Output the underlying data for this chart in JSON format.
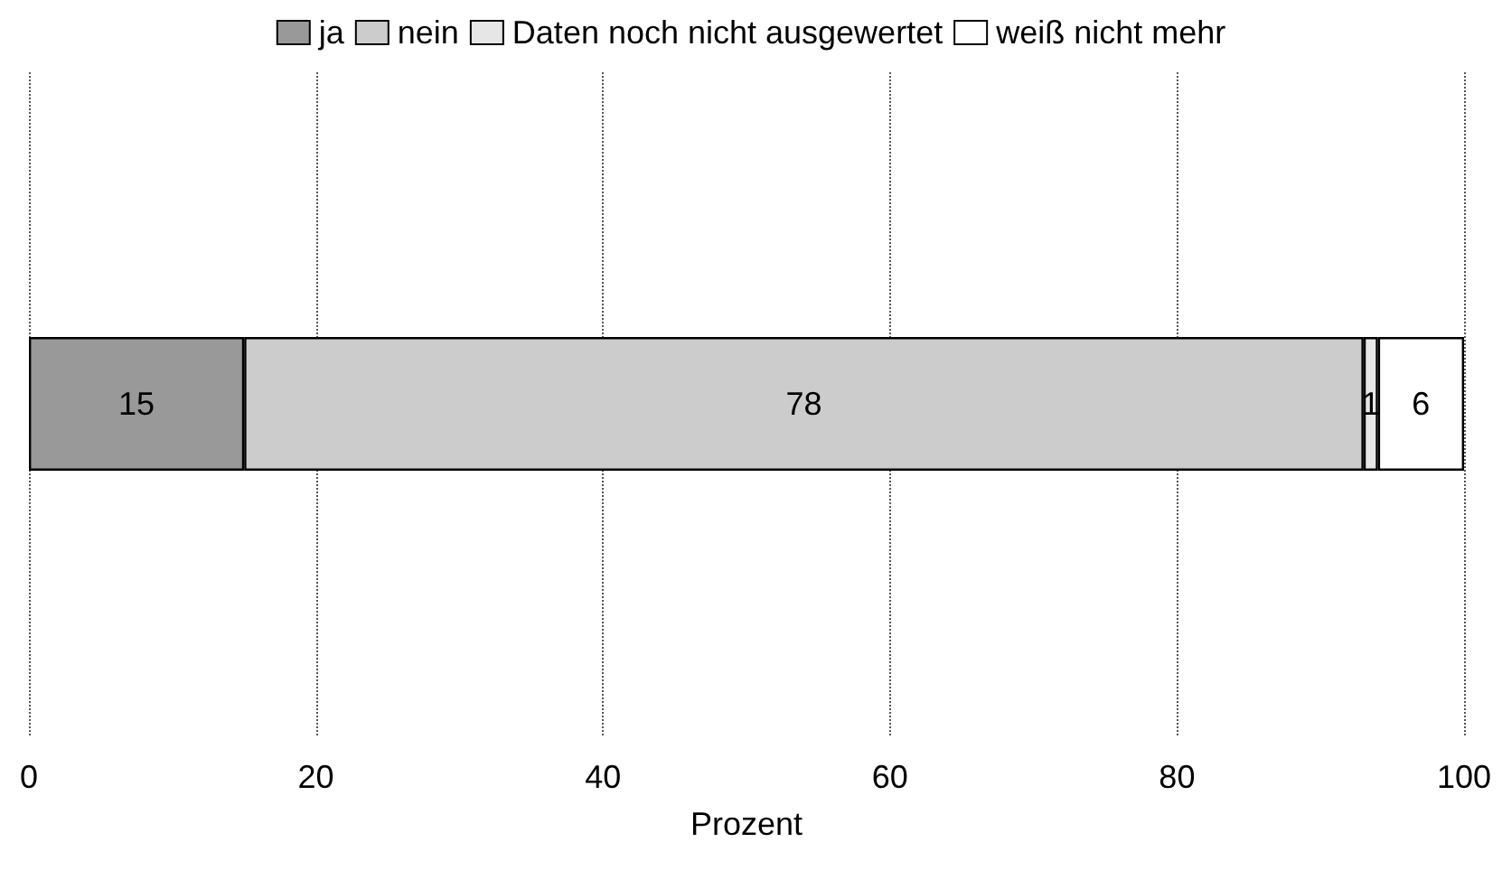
{
  "chart_data": {
    "type": "bar",
    "orientation": "horizontal",
    "stacked": true,
    "categories": [
      null
    ],
    "series": [
      {
        "name": "ja",
        "color": "#999999",
        "values": [
          15
        ]
      },
      {
        "name": "nein",
        "color": "#cccccc",
        "values": [
          78
        ]
      },
      {
        "name": "Daten noch nicht ausgewertet",
        "color": "#e6e6e6",
        "values": [
          1
        ]
      },
      {
        "name": "weiß nicht mehr",
        "color": "#ffffff",
        "values": [
          6
        ]
      }
    ],
    "xlabel": "Prozent",
    "xlim": [
      0,
      100
    ],
    "xticks": [
      0,
      20,
      40,
      60,
      80,
      100
    ],
    "grid": "x",
    "legend": "top",
    "data_labels": true
  }
}
